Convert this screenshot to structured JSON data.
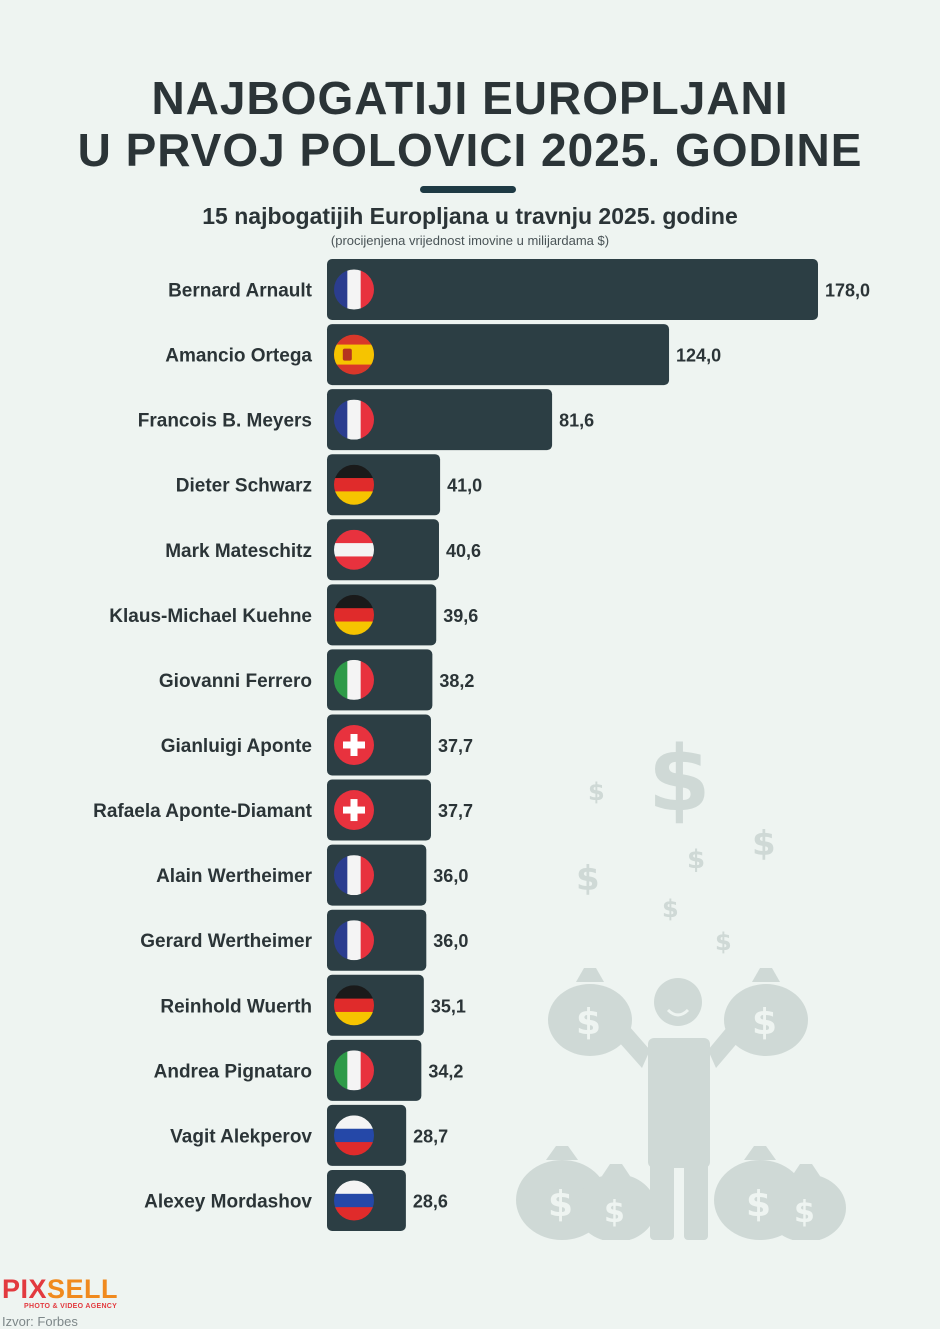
{
  "title": {
    "line1": "NAJBOGATIJI EUROPLJANI",
    "line2": "U PRVOJ POLOVICI 2025. GODINE"
  },
  "subtitle": "15 najbogatijih Europljana u travnju 2025. godine",
  "unit_note": "(procijenjena vrijednost imovine u milijardama $)",
  "source": "Izvor: Forbes",
  "logo": {
    "part1": "PIX",
    "part2": "SELL",
    "tagline": "PHOTO & VIDEO AGENCY"
  },
  "colors": {
    "bar": "#2c3e44",
    "background": "#eef4f1",
    "text": "#2b3437",
    "illustration": "#cfd9d6"
  },
  "chart_data": {
    "type": "bar",
    "orientation": "horizontal",
    "title": "15 najbogatijih Europljana u travnju 2025. godine",
    "ylabel": "(procijenjena vrijednost imovine u milijardama $)",
    "categories": [
      "Bernard Arnault",
      "Amancio Ortega",
      "Francois B. Meyers",
      "Dieter Schwarz",
      "Mark Mateschitz",
      "Klaus-Michael Kuehne",
      "Giovanni Ferrero",
      "Gianluigi Aponte",
      "Rafaela Aponte-Diamant",
      "Alain Wertheimer",
      "Gerard Wertheimer",
      "Reinhold Wuerth",
      "Andrea Pignataro",
      "Vagit Alekperov",
      "Alexey Mordashov"
    ],
    "values": [
      178.0,
      124.0,
      81.6,
      41.0,
      40.6,
      39.6,
      38.2,
      37.7,
      37.7,
      36.0,
      36.0,
      35.1,
      34.2,
      28.7,
      28.6
    ],
    "value_labels": [
      "178,0",
      "124,0",
      "81,6",
      "41,0",
      "40,6",
      "39,6",
      "38,2",
      "37,7",
      "37,7",
      "36,0",
      "36,0",
      "35,1",
      "34,2",
      "28,7",
      "28,6"
    ],
    "flags": [
      "france-flag-icon",
      "spain-flag-icon",
      "france-flag-icon",
      "germany-flag-icon",
      "austria-flag-icon",
      "germany-flag-icon",
      "italy-flag-icon",
      "switzerland-flag-icon",
      "switzerland-flag-icon",
      "france-flag-icon",
      "france-flag-icon",
      "germany-flag-icon",
      "italy-flag-icon",
      "russia-flag-icon",
      "russia-flag-icon"
    ],
    "xlim": [
      0,
      178
    ],
    "grid": false,
    "legend": "none"
  }
}
